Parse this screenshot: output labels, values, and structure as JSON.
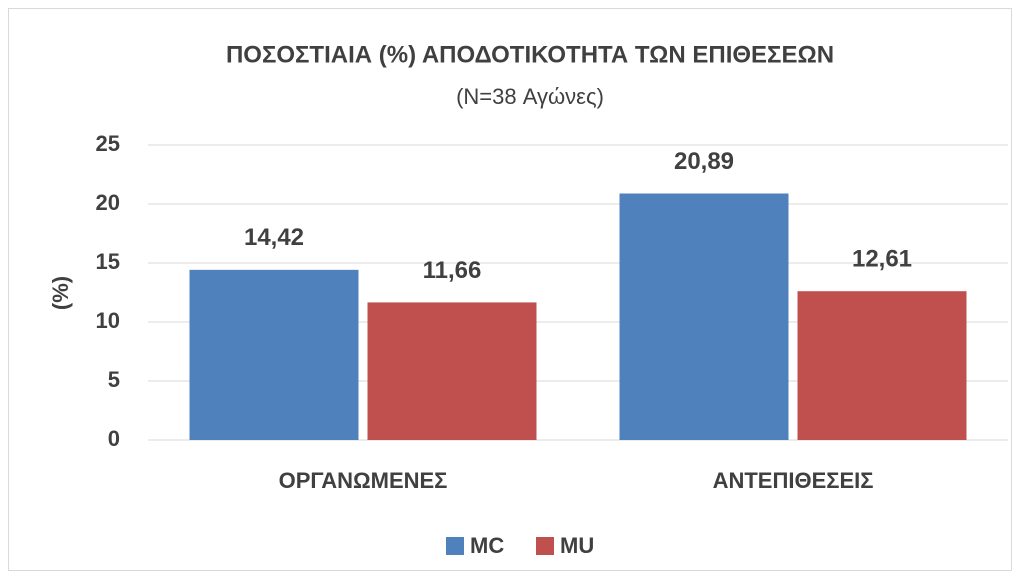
{
  "chart_data": {
    "type": "bar",
    "title": "ΠΟΣΟΣΤΙΑΙΑ (%) ΑΠΟΔΟΤΙΚΟΤΗΤΑ ΤΩΝ ΕΠΙΘΕΣΕΩΝ",
    "subtitle": "(N=38 Αγώνες)",
    "y_label": "(%)",
    "categories": [
      "ΟΡΓΑΝΩΜΕΝΕΣ",
      "ΑΝΤΕΠΙΘΕΣΕΙΣ"
    ],
    "series": [
      {
        "name": "MC",
        "color": "#4f81bd",
        "values": [
          14.42,
          20.89
        ],
        "value_labels": [
          "14,42",
          "20,89"
        ]
      },
      {
        "name": "MU",
        "color": "#c0504d",
        "values": [
          11.66,
          12.61
        ],
        "value_labels": [
          "11,66",
          "12,61"
        ]
      }
    ],
    "ylim": [
      0,
      25
    ],
    "yticks": [
      0,
      5,
      10,
      15,
      20,
      25
    ],
    "grid": true,
    "legend": "bottom"
  }
}
